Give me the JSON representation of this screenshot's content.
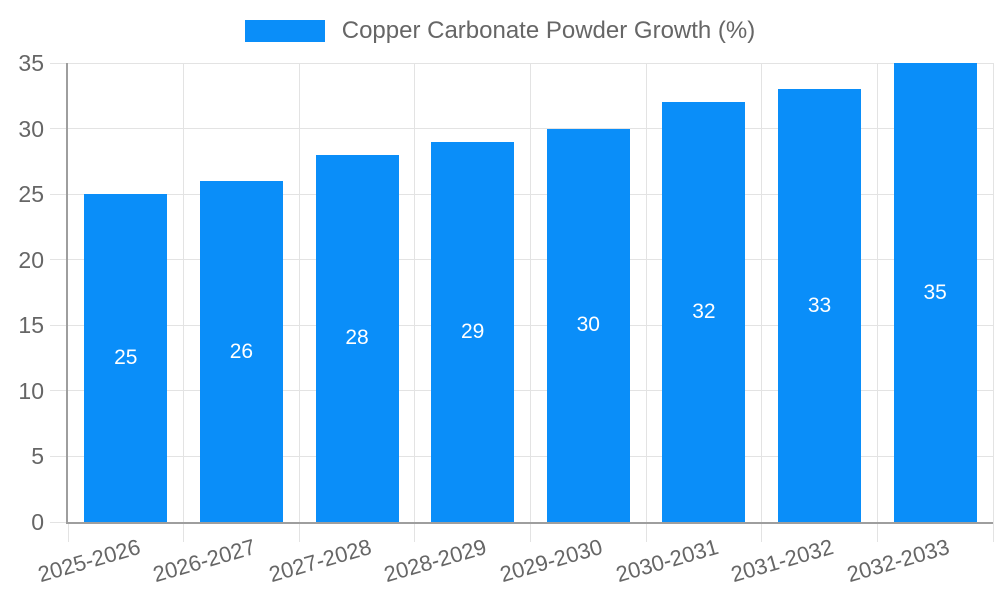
{
  "legend": {
    "label": "Copper Carbonate Powder Growth (%)"
  },
  "chart_data": {
    "type": "bar",
    "title": "Copper Carbonate Powder Growth (%)",
    "categories": [
      "2025-2026",
      "2026-2027",
      "2027-2028",
      "2028-2029",
      "2029-2030",
      "2030-2031",
      "2031-2032",
      "2032-2033"
    ],
    "values": [
      25,
      26,
      28,
      29,
      30,
      32,
      33,
      35
    ],
    "series": [
      {
        "name": "Copper Carbonate Powder Growth (%)",
        "values": [
          25,
          26,
          28,
          29,
          30,
          32,
          33,
          35
        ]
      }
    ],
    "bar_labels": [
      "25",
      "26",
      "28",
      "29",
      "30",
      "32",
      "33",
      "35"
    ],
    "xlabel": "",
    "ylabel": "",
    "ylim": [
      0,
      35
    ],
    "yticks": [
      0,
      5,
      10,
      15,
      20,
      25,
      30,
      35
    ],
    "grid": true,
    "legend_position": "top",
    "colors": {
      "bar": "#0a8ef9",
      "bar_value_text": "#ffffff",
      "tick_text": "#666666",
      "legend_text": "#666666",
      "grid_line": "#e3e3e3",
      "axis_line": "#9e9e9e",
      "background": "#ffffff"
    }
  }
}
